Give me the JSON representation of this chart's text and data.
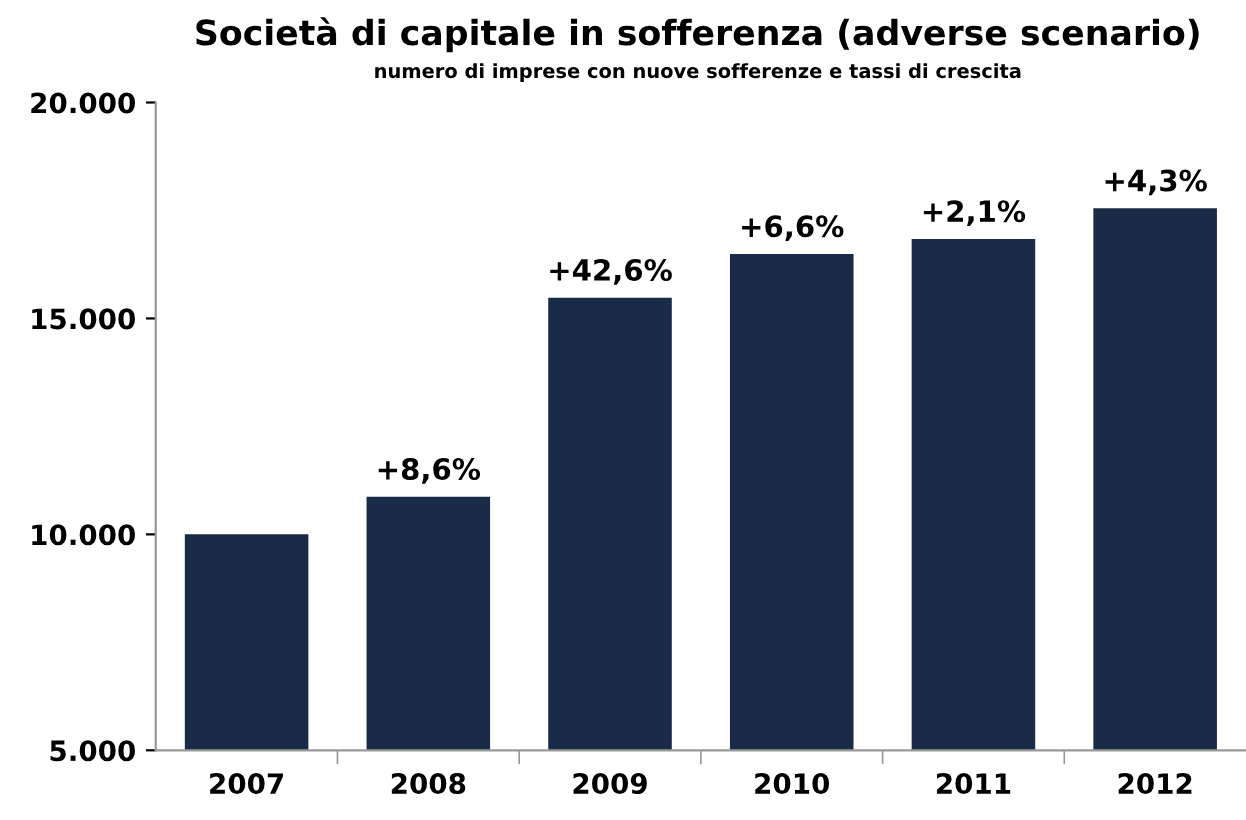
{
  "chart_data": {
    "type": "bar",
    "title": "Società di capitale in sofferenza (adverse scenario)",
    "subtitle": "numero di imprese con nuove sofferenze e tassi di crescita",
    "categories": [
      "2007",
      "2008",
      "2009",
      "2010",
      "2011",
      "2012"
    ],
    "values": [
      10000,
      10870,
      15480,
      16490,
      16840,
      17550
    ],
    "annotations": [
      {
        "text": "+8,6%",
        "x": "2008",
        "y": 10870
      },
      {
        "text": "+42,6%",
        "x": "2009",
        "y": 15480
      },
      {
        "text": "+6,6%",
        "x": "2010",
        "y": 16490
      },
      {
        "text": "+2,1%",
        "x": "2011",
        "y": 16840
      },
      {
        "text": "+4,3%",
        "x": "2012",
        "y": 17550
      }
    ],
    "color": "#1a2b48",
    "ylim": [
      5000,
      20000
    ],
    "yticks": [
      {
        "value": 5000,
        "label": "5.000"
      },
      {
        "value": 10000,
        "label": "10.000"
      },
      {
        "value": 15000,
        "label": "15.000"
      },
      {
        "value": 20000,
        "label": "20.000"
      }
    ],
    "grid": false,
    "legend": false
  }
}
